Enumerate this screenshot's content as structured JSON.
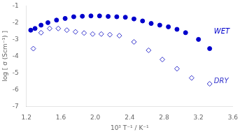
{
  "chart_data": {
    "type": "scatter",
    "xlabel": "10³ T⁻¹ / K⁻¹",
    "ylabel": "log [ σ (Scm⁻¹) ]",
    "series": [
      {
        "color": "#0000cc",
        "marker": "circle",
        "x": [
          1.25,
          1.3,
          1.37,
          1.45,
          1.55,
          1.65,
          1.75,
          1.85,
          1.95,
          2.05,
          2.15,
          2.25,
          2.35,
          2.45,
          2.55,
          2.65,
          2.75,
          2.85,
          2.95,
          3.05,
          3.2,
          3.33
        ],
        "values": [
          -2.45,
          -2.35,
          -2.15,
          -2.0,
          -1.85,
          -1.75,
          -1.65,
          -1.62,
          -1.6,
          -1.6,
          -1.63,
          -1.65,
          -1.68,
          -1.78,
          -1.9,
          -2.05,
          -2.15,
          -2.25,
          -2.4,
          -2.6,
          -3.0,
          -3.55
        ]
      },
      {
        "color": "#3333cc",
        "marker": "open diamond",
        "x": [
          1.28,
          1.37,
          1.47,
          1.57,
          1.67,
          1.77,
          1.87,
          1.97,
          2.07,
          2.17,
          2.28,
          2.45,
          2.62,
          2.78,
          2.95,
          3.12,
          3.33
        ],
        "values": [
          -3.55,
          -2.6,
          -2.35,
          -2.35,
          -2.45,
          -2.55,
          -2.62,
          -2.68,
          -2.68,
          -2.72,
          -2.78,
          -3.15,
          -3.65,
          -4.2,
          -4.75,
          -5.3,
          -5.65
        ]
      }
    ],
    "annotations": [
      {
        "text": "WET",
        "x": 3.38,
        "y": -2.55,
        "color": "#0000cc"
      },
      {
        "text": "DRY",
        "x": 3.38,
        "y": -5.5,
        "color": "#3333cc"
      }
    ],
    "xlim": [
      1.2,
      3.6
    ],
    "ylim": [
      -7.0,
      -1.0
    ],
    "xticks": [
      1.2,
      1.6,
      {
        "value": 2.0,
        "label": "2.0"
      },
      2.4,
      2.8,
      3.2,
      3.6
    ],
    "yticks": [
      -7.0,
      -6.0,
      -5.0,
      -4.0,
      -3.0,
      -2.0,
      -1.0
    ],
    "grid": false
  }
}
